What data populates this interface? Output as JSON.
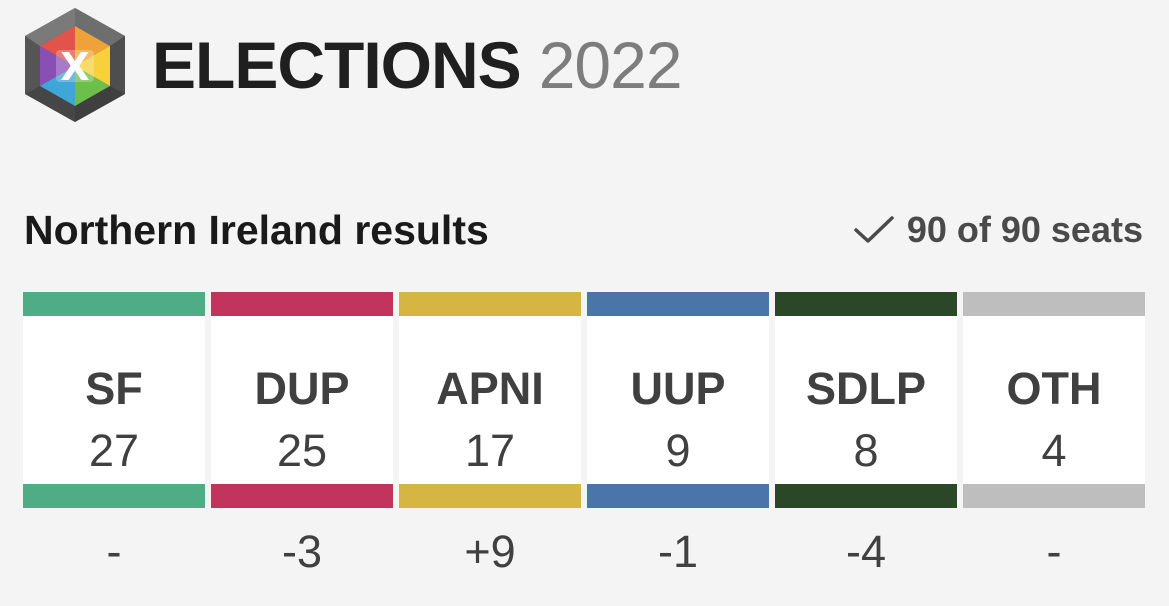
{
  "header": {
    "logo_letter": "X",
    "title": "ELECTIONS",
    "year": "2022"
  },
  "results": {
    "region_title": "Northern Ireland results",
    "seats_status": "90 of 90 seats",
    "status_icon": "checkmark-icon"
  },
  "parties": [
    {
      "abbr": "SF",
      "seats": "27",
      "change": "-",
      "color": "#4ead86"
    },
    {
      "abbr": "DUP",
      "seats": "25",
      "change": "-3",
      "color": "#c2345e"
    },
    {
      "abbr": "APNI",
      "seats": "17",
      "change": "+9",
      "color": "#d7b543"
    },
    {
      "abbr": "UUP",
      "seats": "9",
      "change": "-1",
      "color": "#4a75a8"
    },
    {
      "abbr": "SDLP",
      "seats": "8",
      "change": "-4",
      "color": "#2a4727"
    },
    {
      "abbr": "OTH",
      "seats": "4",
      "change": "-",
      "color": "#bebebe"
    }
  ]
}
